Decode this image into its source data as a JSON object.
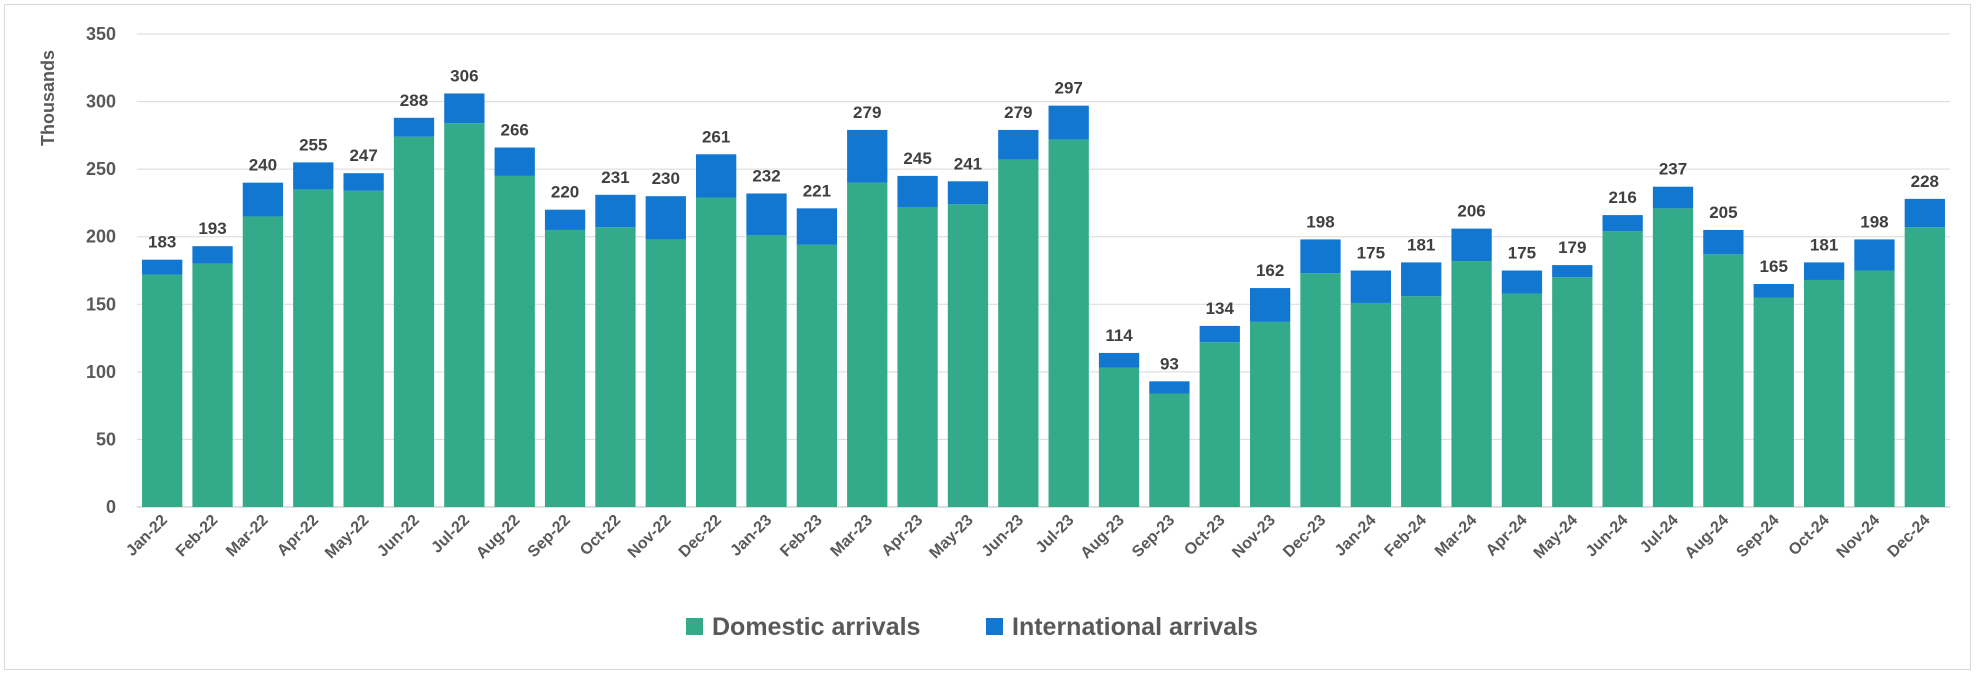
{
  "chart_data": {
    "type": "bar",
    "stacked": true,
    "ylabel": "Thousands",
    "xlabel": "",
    "ylim": [
      0,
      350
    ],
    "yticks": [
      "0",
      "50",
      "100",
      "150",
      "200",
      "250",
      "300",
      "350"
    ],
    "grid": true,
    "legend_position": "bottom",
    "categories": [
      "Jan-22",
      "Feb-22",
      "Mar-22",
      "Apr-22",
      "May-22",
      "Jun-22",
      "Jul-22",
      "Aug-22",
      "Sep-22",
      "Oct-22",
      "Nov-22",
      "Dec-22",
      "Jan-23",
      "Feb-23",
      "Mar-23",
      "Apr-23",
      "May-23",
      "Jun-23",
      "Jul-23",
      "Aug-23",
      "Sep-23",
      "Oct-23",
      "Nov-23",
      "Dec-23",
      "Jan-24",
      "Feb-24",
      "Mar-24",
      "Apr-24",
      "May-24",
      "Jun-24",
      "Jul-24",
      "Aug-24",
      "Sep-24",
      "Oct-24",
      "Nov-24",
      "Dec-24"
    ],
    "series": [
      {
        "name": "Domestic arrivals",
        "color": "#33ab8a",
        "values": [
          172,
          180,
          215,
          235,
          234,
          274,
          284,
          245,
          205,
          207,
          198,
          229,
          201,
          194,
          240,
          222,
          224,
          257,
          272,
          103,
          84,
          122,
          137,
          173,
          151,
          156,
          182,
          158,
          170,
          204,
          221,
          187,
          155,
          168,
          175,
          207
        ]
      },
      {
        "name": "International arrivals",
        "color": "#1177d1",
        "values": [
          11,
          13,
          25,
          20,
          13,
          14,
          22,
          21,
          15,
          24,
          32,
          32,
          31,
          27,
          39,
          23,
          17,
          22,
          25,
          11,
          9,
          12,
          25,
          25,
          24,
          25,
          24,
          17,
          9,
          12,
          16,
          18,
          10,
          13,
          23,
          21
        ]
      }
    ],
    "totals": [
      "183",
      "193",
      "240",
      "255",
      "247",
      "288",
      "306",
      "266",
      "220",
      "231",
      "230",
      "261",
      "232",
      "221",
      "279",
      "245",
      "241",
      "279",
      "297",
      "114",
      "93",
      "134",
      "162",
      "198",
      "175",
      "181",
      "206",
      "175",
      "179",
      "216",
      "237",
      "205",
      "165",
      "181",
      "198",
      "228"
    ]
  }
}
